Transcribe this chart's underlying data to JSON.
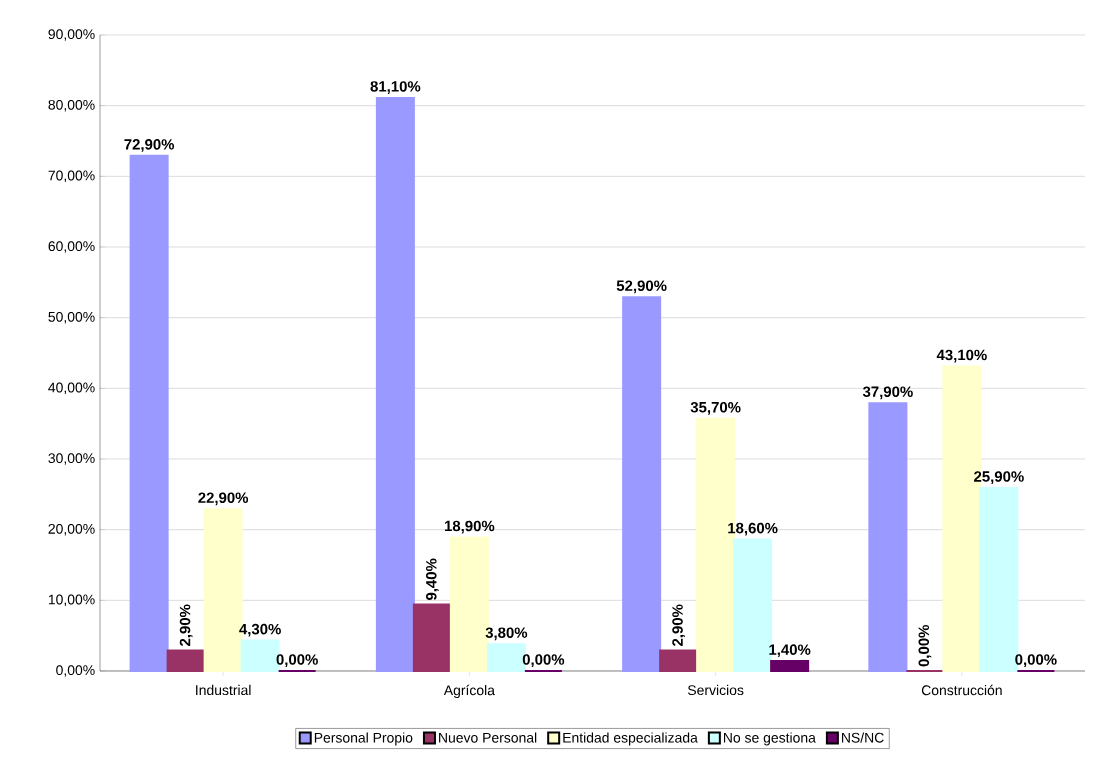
{
  "chart_data": {
    "type": "bar",
    "categories": [
      "Industrial",
      "Agrícola",
      "Servicios",
      "Construcción"
    ],
    "series": [
      {
        "name": "Personal Propio",
        "color": "#9999ff",
        "values": [
          72.9,
          81.1,
          52.9,
          37.9
        ],
        "value_labels": [
          "72,90%",
          "81,10%",
          "52,90%",
          "37,90%"
        ]
      },
      {
        "name": "Nuevo Personal",
        "color": "#993366",
        "values": [
          2.9,
          9.4,
          2.9,
          0.0
        ],
        "value_labels": [
          "2,90%",
          "9,40%",
          "2,90%",
          "0,00%"
        ]
      },
      {
        "name": "Entidad especializada",
        "color": "#ffffcc",
        "values": [
          22.9,
          18.9,
          35.7,
          43.1
        ],
        "value_labels": [
          "22,90%",
          "18,90%",
          "35,70%",
          "43,10%"
        ]
      },
      {
        "name": "No se gestiona",
        "color": "#ccffff",
        "values": [
          4.3,
          3.8,
          18.6,
          25.9
        ],
        "value_labels": [
          "4,30%",
          "3,80%",
          "18,60%",
          "25,90%"
        ]
      },
      {
        "name": "NS/NC",
        "color": "#660066",
        "values": [
          0.0,
          0.0,
          1.4,
          0.0
        ],
        "value_labels": [
          "0,00%",
          "0,00%",
          "1,40%",
          "0,00%"
        ]
      }
    ],
    "ylim": [
      0,
      90
    ],
    "yticks": [
      {
        "value": 0,
        "label": "0,00%"
      },
      {
        "value": 10,
        "label": "10,00%"
      },
      {
        "value": 20,
        "label": "20,00%"
      },
      {
        "value": 30,
        "label": "30,00%"
      },
      {
        "value": 40,
        "label": "40,00%"
      },
      {
        "value": 50,
        "label": "50,00%"
      },
      {
        "value": 60,
        "label": "60,00%"
      },
      {
        "value": 70,
        "label": "70,00%"
      },
      {
        "value": 80,
        "label": "80,00%"
      },
      {
        "value": 90,
        "label": "90,00%"
      }
    ],
    "grid": "y",
    "legend": "bottom"
  }
}
